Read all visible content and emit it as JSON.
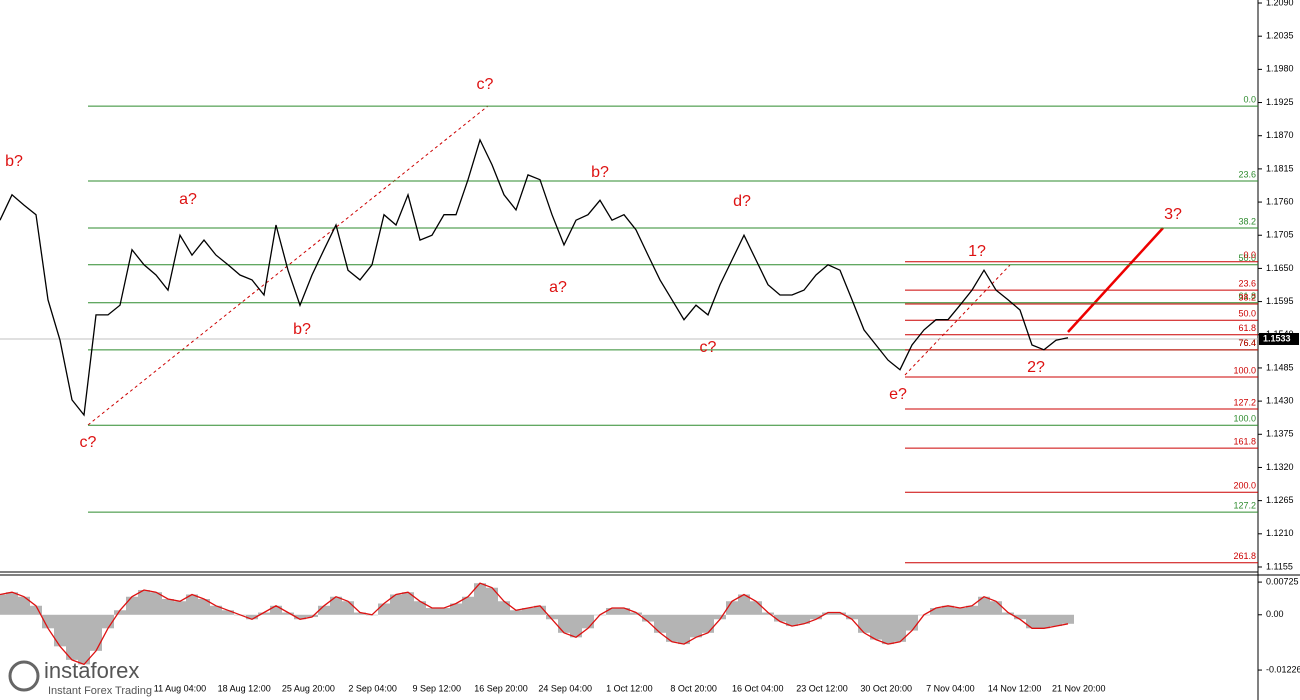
{
  "chart_data": {
    "type": "line",
    "color": "#000000",
    "values": [
      1.173,
      1.1772,
      1.1755,
      1.1739,
      1.1598,
      1.1531,
      1.1432,
      1.1407,
      1.1573,
      1.1573,
      1.1589,
      1.1681,
      1.1656,
      1.1639,
      1.1614,
      1.1705,
      1.1672,
      1.1697,
      1.1672,
      1.1656,
      1.1639,
      1.1631,
      1.1606,
      1.1722,
      1.1647,
      1.1589,
      1.1639,
      1.1681,
      1.1722,
      1.1647,
      1.1631,
      1.1656,
      1.1739,
      1.1722,
      1.1772,
      1.1697,
      1.1705,
      1.1739,
      1.1739,
      1.1797,
      1.1863,
      1.1822,
      1.1772,
      1.1747,
      1.1805,
      1.1797,
      1.1739,
      1.1689,
      1.173,
      1.1739,
      1.1763,
      1.173,
      1.1739,
      1.1714,
      1.1672,
      1.1631,
      1.1598,
      1.1565,
      1.1589,
      1.1573,
      1.1623,
      1.1664,
      1.1705,
      1.1664,
      1.1623,
      1.1606,
      1.1606,
      1.1614,
      1.1639,
      1.1656,
      1.1647,
      1.1598,
      1.1548,
      1.1523,
      1.1498,
      1.1482,
      1.1523,
      1.1548,
      1.1565,
      1.1565,
      1.1589,
      1.1614,
      1.1647,
      1.1614,
      1.1598,
      1.1581,
      1.1523,
      1.1515,
      1.1531,
      1.1535
    ],
    "ylim": [
      1.115,
      1.2095
    ],
    "yticks": [
      1.1155,
      {
        "value": 1.121,
        "label": "1.1210"
      },
      1.1265,
      {
        "value": 1.132,
        "label": "1.1320"
      },
      1.1375,
      {
        "value": 1.143,
        "label": "1.1430"
      },
      1.1485,
      {
        "value": 1.154,
        "label": "1.1540"
      },
      1.1595,
      {
        "value": 1.165,
        "label": "1.1650"
      },
      1.1705,
      {
        "value": 1.176,
        "label": "1.1760"
      },
      1.1815,
      {
        "value": 1.187,
        "label": "1.1870"
      },
      1.1925,
      {
        "value": 1.198,
        "label": "1.1980"
      },
      1.2035,
      {
        "value": 1.209,
        "label": "1.2090"
      }
    ],
    "x_labels": [
      "11 Aug 04:00",
      "18 Aug 12:00",
      "25 Aug 20:00",
      "2 Sep 04:00",
      "9 Sep 12:00",
      "16 Sep 20:00",
      "24 Sep 04:00",
      "1 Oct 12:00",
      "8 Oct 20:00",
      "16 Oct 04:00",
      "23 Oct 12:00",
      "30 Oct 20:00",
      "7 Nov 04:00",
      "14 Nov 12:00",
      "21 Nov 20:00"
    ],
    "last_price": 1.1533,
    "fib_green": {
      "color": "#2e8b2e",
      "levels": [
        {
          "label": "0.0",
          "price": 1.1919
        },
        {
          "label": "23.6",
          "price": 1.1795
        },
        {
          "label": "38.2",
          "price": 1.1717
        },
        {
          "label": "50.0",
          "price": 1.1656
        },
        {
          "label": "61.8",
          "price": 1.1593
        },
        {
          "label": "76.4",
          "price": 1.1515
        },
        {
          "label": "100.0",
          "price": 1.139
        },
        {
          "label": "127.2",
          "price": 1.1246
        }
      ]
    },
    "fib_red": {
      "color": "#cc0000",
      "levels": [
        {
          "label": "0.0",
          "price": 1.1661
        },
        {
          "label": "23.6",
          "price": 1.1614
        },
        {
          "label": "38.2",
          "price": 1.1591
        },
        {
          "label": "50.0",
          "price": 1.1564
        },
        {
          "label": "61.8",
          "price": 1.154
        },
        {
          "label": "76.4",
          "price": 1.1515
        },
        {
          "label": "100.0",
          "price": 1.147
        },
        {
          "label": "127.2",
          "price": 1.1417
        },
        {
          "label": "161.8",
          "price": 1.1352
        },
        {
          "label": "200.0",
          "price": 1.1279
        },
        {
          "label": "261.8",
          "price": 1.1162
        }
      ]
    },
    "wave_labels": [
      "b?",
      "c?",
      "a?",
      "b?",
      "c?",
      "a?",
      "b?",
      "c?",
      "d?",
      "e?",
      "1?",
      "2?",
      "3?"
    ],
    "oscillator": {
      "values": [
        0.0045,
        0.005,
        0.004,
        0.002,
        -0.003,
        -0.007,
        -0.01,
        -0.011,
        -0.008,
        -0.003,
        0.001,
        0.004,
        0.0055,
        0.005,
        0.0035,
        0.003,
        0.0045,
        0.0035,
        0.002,
        0.001,
        0,
        -0.001,
        0.0005,
        0.002,
        0.0005,
        -0.001,
        -0.0005,
        0.002,
        0.004,
        0.003,
        0.0005,
        0,
        0.0025,
        0.0045,
        0.005,
        0.003,
        0.0015,
        0.0015,
        0.0025,
        0.004,
        0.007,
        0.006,
        0.003,
        0.001,
        0.0015,
        0.002,
        -0.001,
        -0.004,
        -0.005,
        -0.003,
        0,
        0.0015,
        0.0015,
        0.0005,
        -0.0015,
        -0.004,
        -0.006,
        -0.0065,
        -0.005,
        -0.004,
        -0.001,
        0.003,
        0.0045,
        0.003,
        0.0005,
        -0.0015,
        -0.0025,
        -0.002,
        -0.001,
        0.0005,
        0.0005,
        -0.001,
        -0.004,
        -0.0055,
        -0.0065,
        -0.006,
        -0.0035,
        0,
        0.0015,
        0.002,
        0.0015,
        0.002,
        0.004,
        0.003,
        0.0005,
        -0.001,
        -0.003,
        -0.003,
        -0.0025,
        -0.002
      ],
      "bar_color": "#b4b4b4",
      "line_color": "#dd1111",
      "ylim": [
        -0.0189,
        0.0086
      ],
      "yticks": [
        0.00725,
        {
          "value": 0,
          "label": "0.00"
        },
        -0.01226
      ]
    },
    "logo": {
      "name": "instaforex",
      "tagline": "Instant Forex Trading"
    }
  }
}
